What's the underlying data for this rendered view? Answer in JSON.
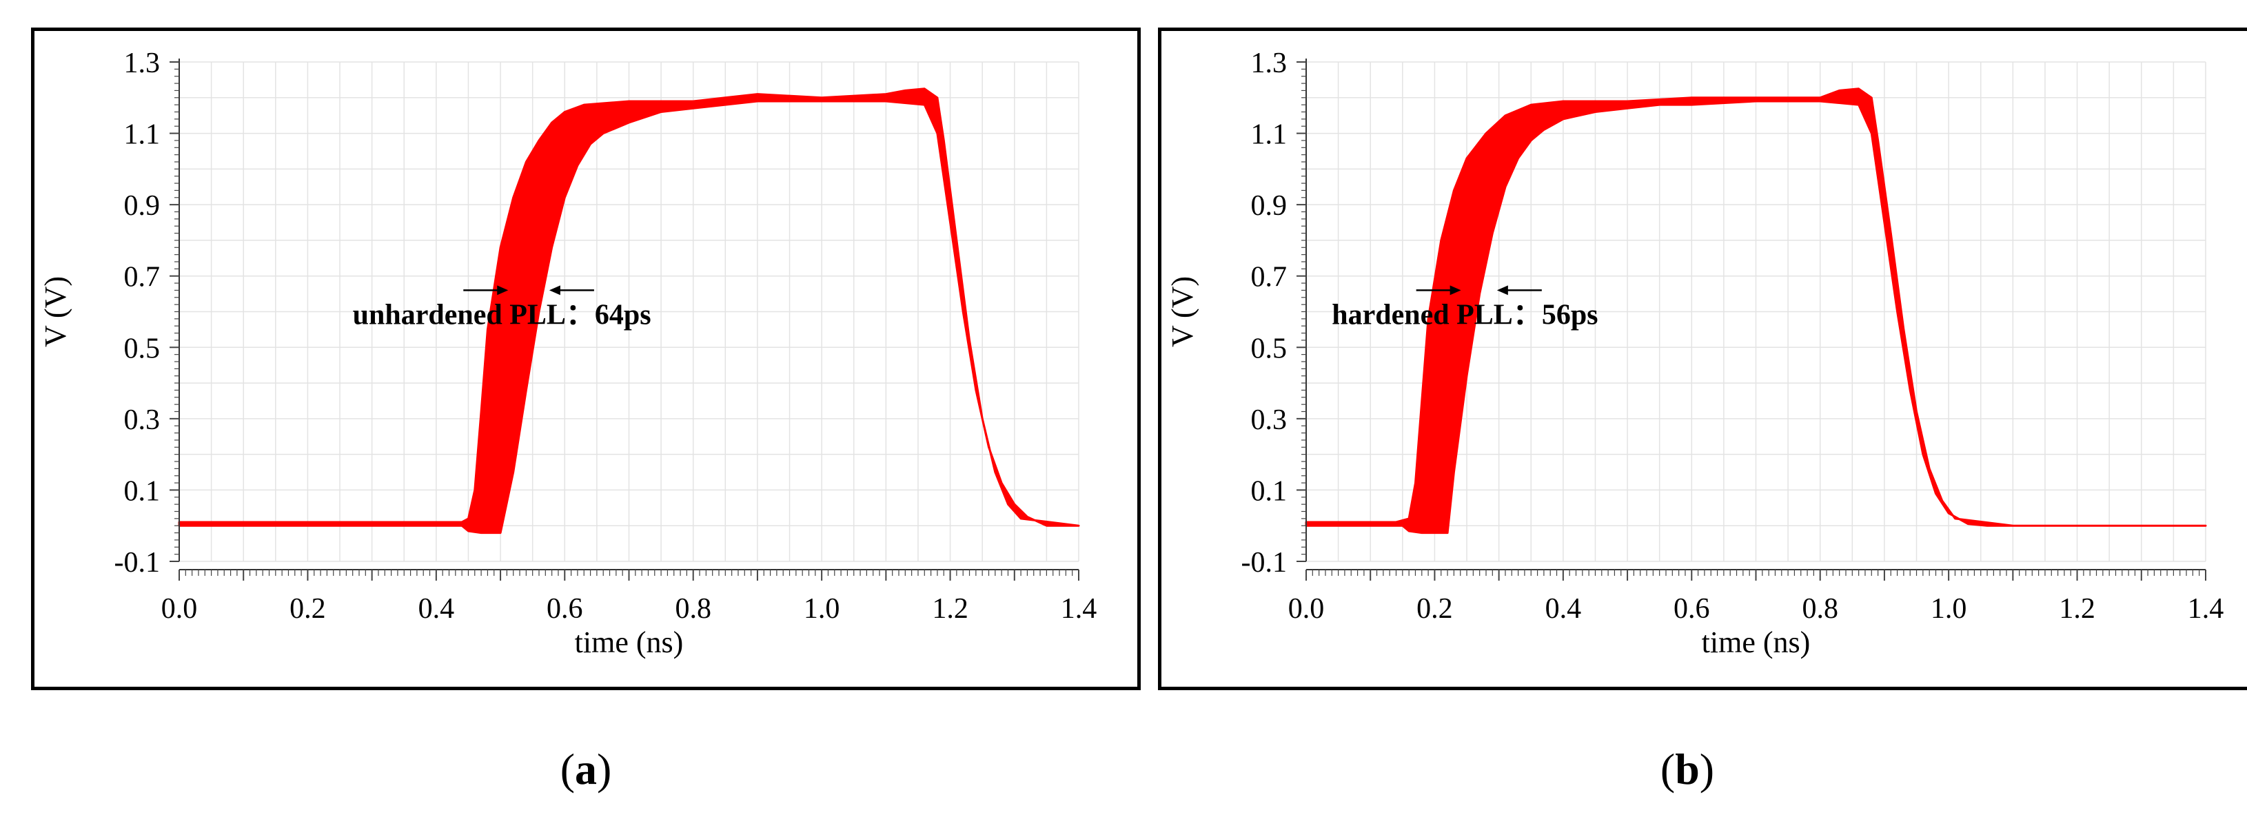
{
  "chart_data": [
    {
      "panel_label": "a",
      "type": "line",
      "xlabel": "time (ns)",
      "ylabel": "V (V)",
      "xlim": [
        0.0,
        1.4
      ],
      "ylim": [
        -0.1,
        1.3
      ],
      "xticks": [
        "0.0",
        "0.2",
        "0.4",
        "0.6",
        "0.8",
        "1.0",
        "1.2",
        "1.4"
      ],
      "yticks": [
        "1.3",
        "1.1",
        "0.9",
        "0.7",
        "0.5",
        "0.3",
        "0.1",
        "-0.1"
      ],
      "grid": true,
      "annotation": "unhardened PLL：64ps",
      "jitter_arrows_x": [
        0.512,
        0.576
      ],
      "jitter_arrows_y": 0.66,
      "annotation_at": [
        0.27,
        0.565
      ],
      "band_color": "#ff0000",
      "band": {
        "lower": [
          [
            0.0,
            0.0
          ],
          [
            0.44,
            0.0
          ],
          [
            0.45,
            -0.015
          ],
          [
            0.47,
            -0.02
          ],
          [
            0.5,
            -0.02
          ],
          [
            0.52,
            0.15
          ],
          [
            0.54,
            0.38
          ],
          [
            0.56,
            0.6
          ],
          [
            0.58,
            0.78
          ],
          [
            0.6,
            0.92
          ],
          [
            0.62,
            1.01
          ],
          [
            0.64,
            1.07
          ],
          [
            0.66,
            1.1
          ],
          [
            0.7,
            1.13
          ],
          [
            0.75,
            1.16
          ],
          [
            0.8,
            1.17
          ],
          [
            0.85,
            1.18
          ],
          [
            0.9,
            1.19
          ],
          [
            1.0,
            1.19
          ],
          [
            1.1,
            1.19
          ],
          [
            1.16,
            1.18
          ],
          [
            1.18,
            1.1
          ],
          [
            1.2,
            0.85
          ],
          [
            1.22,
            0.6
          ],
          [
            1.24,
            0.38
          ],
          [
            1.26,
            0.22
          ],
          [
            1.28,
            0.12
          ],
          [
            1.3,
            0.06
          ],
          [
            1.32,
            0.025
          ],
          [
            1.35,
            0.0
          ],
          [
            1.4,
            0.0
          ]
        ],
        "upper": [
          [
            0.0,
            0.01
          ],
          [
            0.44,
            0.01
          ],
          [
            0.45,
            0.02
          ],
          [
            0.46,
            0.1
          ],
          [
            0.47,
            0.32
          ],
          [
            0.48,
            0.55
          ],
          [
            0.5,
            0.78
          ],
          [
            0.52,
            0.92
          ],
          [
            0.54,
            1.02
          ],
          [
            0.56,
            1.08
          ],
          [
            0.58,
            1.13
          ],
          [
            0.6,
            1.16
          ],
          [
            0.63,
            1.18
          ],
          [
            0.7,
            1.19
          ],
          [
            0.8,
            1.19
          ],
          [
            0.85,
            1.2
          ],
          [
            0.9,
            1.21
          ],
          [
            1.0,
            1.2
          ],
          [
            1.1,
            1.21
          ],
          [
            1.13,
            1.22
          ],
          [
            1.16,
            1.225
          ],
          [
            1.18,
            1.2
          ],
          [
            1.19,
            1.08
          ],
          [
            1.21,
            0.8
          ],
          [
            1.23,
            0.52
          ],
          [
            1.25,
            0.3
          ],
          [
            1.27,
            0.15
          ],
          [
            1.29,
            0.06
          ],
          [
            1.31,
            0.02
          ],
          [
            1.4,
            0.0
          ]
        ]
      }
    },
    {
      "panel_label": "b",
      "type": "line",
      "xlabel": "time (ns)",
      "ylabel": "V (V)",
      "xlim": [
        0.0,
        1.4
      ],
      "ylim": [
        -0.1,
        1.3
      ],
      "xticks": [
        "0.0",
        "0.2",
        "0.4",
        "0.6",
        "0.8",
        "1.0",
        "1.2",
        "1.4"
      ],
      "yticks": [
        "1.3",
        "1.1",
        "0.9",
        "0.7",
        "0.5",
        "0.3",
        "0.1",
        "-0.1"
      ],
      "grid": true,
      "annotation": "hardened PLL：56ps",
      "jitter_arrows_x": [
        0.241,
        0.297
      ],
      "jitter_arrows_y": 0.66,
      "annotation_at": [
        0.04,
        0.565
      ],
      "band_color": "#ff0000",
      "band": {
        "lower": [
          [
            0.0,
            0.0
          ],
          [
            0.15,
            0.0
          ],
          [
            0.16,
            -0.015
          ],
          [
            0.18,
            -0.02
          ],
          [
            0.22,
            -0.02
          ],
          [
            0.23,
            0.15
          ],
          [
            0.25,
            0.42
          ],
          [
            0.27,
            0.65
          ],
          [
            0.29,
            0.82
          ],
          [
            0.31,
            0.95
          ],
          [
            0.33,
            1.03
          ],
          [
            0.35,
            1.08
          ],
          [
            0.37,
            1.11
          ],
          [
            0.4,
            1.14
          ],
          [
            0.45,
            1.16
          ],
          [
            0.5,
            1.17
          ],
          [
            0.55,
            1.18
          ],
          [
            0.6,
            1.18
          ],
          [
            0.7,
            1.19
          ],
          [
            0.8,
            1.19
          ],
          [
            0.86,
            1.18
          ],
          [
            0.88,
            1.1
          ],
          [
            0.9,
            0.85
          ],
          [
            0.92,
            0.6
          ],
          [
            0.94,
            0.38
          ],
          [
            0.96,
            0.2
          ],
          [
            0.98,
            0.09
          ],
          [
            1.0,
            0.035
          ],
          [
            1.03,
            0.005
          ],
          [
            1.06,
            0.0
          ],
          [
            1.4,
            0.0
          ]
        ],
        "upper": [
          [
            0.0,
            0.01
          ],
          [
            0.14,
            0.01
          ],
          [
            0.16,
            0.02
          ],
          [
            0.17,
            0.12
          ],
          [
            0.18,
            0.35
          ],
          [
            0.19,
            0.58
          ],
          [
            0.21,
            0.8
          ],
          [
            0.23,
            0.94
          ],
          [
            0.25,
            1.03
          ],
          [
            0.28,
            1.1
          ],
          [
            0.31,
            1.15
          ],
          [
            0.35,
            1.18
          ],
          [
            0.4,
            1.19
          ],
          [
            0.5,
            1.19
          ],
          [
            0.6,
            1.2
          ],
          [
            0.7,
            1.2
          ],
          [
            0.8,
            1.2
          ],
          [
            0.83,
            1.22
          ],
          [
            0.86,
            1.225
          ],
          [
            0.88,
            1.2
          ],
          [
            0.89,
            1.08
          ],
          [
            0.91,
            0.82
          ],
          [
            0.93,
            0.55
          ],
          [
            0.95,
            0.32
          ],
          [
            0.97,
            0.16
          ],
          [
            0.99,
            0.07
          ],
          [
            1.01,
            0.02
          ],
          [
            1.1,
            0.0
          ],
          [
            1.4,
            0.0
          ]
        ]
      }
    }
  ]
}
